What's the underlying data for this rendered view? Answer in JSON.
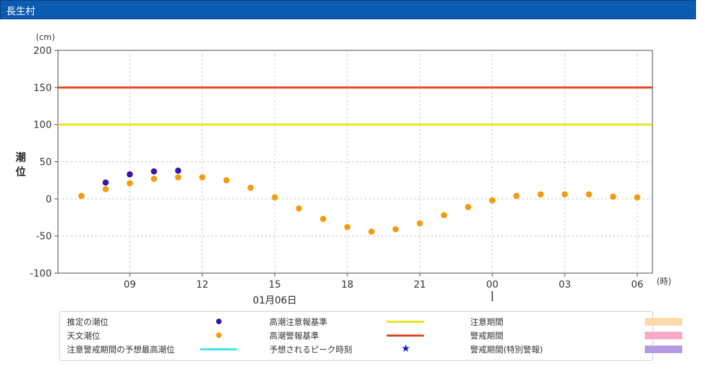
{
  "header": {
    "title": "長生村"
  },
  "chart_data": {
    "type": "scatter",
    "yunit": "(cm)",
    "ylabel": "潮位",
    "xunit": "(時)",
    "date_label": "01月06日",
    "ylim": [
      -100,
      200
    ],
    "yticks": [
      200,
      150,
      100,
      50,
      0,
      -50,
      -100
    ],
    "xticks": [
      "09",
      "12",
      "15",
      "18",
      "21",
      "00",
      "03",
      "06"
    ],
    "grid": true,
    "reference_lines": [
      {
        "name": "高潮警報基準",
        "value": 150,
        "color": "#e0441e"
      },
      {
        "name": "高潮注意報基準",
        "value": 100,
        "color": "#e6e61e"
      }
    ],
    "series": [
      {
        "name": "天文潮位",
        "color": "#f59a0c",
        "points": [
          [
            "07:00",
            4
          ],
          [
            "08:00",
            13
          ],
          [
            "09:00",
            21
          ],
          [
            "10:00",
            27
          ],
          [
            "11:00",
            29
          ],
          [
            "12:00",
            29
          ],
          [
            "13:00",
            25
          ],
          [
            "14:00",
            15
          ],
          [
            "15:00",
            2
          ],
          [
            "16:00",
            -13
          ],
          [
            "17:00",
            -27
          ],
          [
            "18:00",
            -38
          ],
          [
            "19:00",
            -44
          ],
          [
            "20:00",
            -41
          ],
          [
            "21:00",
            -33
          ],
          [
            "22:00",
            -22
          ],
          [
            "23:00",
            -11
          ],
          [
            "00:00",
            -2
          ],
          [
            "01:00",
            4
          ],
          [
            "02:00",
            6
          ],
          [
            "03:00",
            6
          ],
          [
            "04:00",
            6
          ],
          [
            "05:00",
            3
          ],
          [
            "06:00",
            2
          ]
        ]
      },
      {
        "name": "推定の潮位",
        "color": "#3a14b0",
        "points": [
          [
            "08:00",
            22
          ],
          [
            "09:00",
            33
          ],
          [
            "10:00",
            37
          ],
          [
            "11:00",
            38
          ]
        ]
      }
    ]
  },
  "legend": {
    "items": [
      {
        "label": "推定の潮位",
        "type": "dot",
        "color": "#3a14b0"
      },
      {
        "label": "高潮注意報基準",
        "type": "line",
        "color": "#e6e61e"
      },
      {
        "label": "注意期間",
        "type": "box",
        "color": "#fbd9a8"
      },
      {
        "label": "天文潮位",
        "type": "dot",
        "color": "#f59a0c"
      },
      {
        "label": "高潮警報基準",
        "type": "line",
        "color": "#e0441e"
      },
      {
        "label": "警戒期間",
        "type": "box",
        "color": "#f7abc8"
      },
      {
        "label": "注意警戒期間の予想最高潮位",
        "type": "line",
        "color": "#3ee6e8"
      },
      {
        "label": "予想されるピーク時刻",
        "type": "star",
        "color": "#1020c8"
      },
      {
        "label": "警戒期間(特別警報)",
        "type": "box",
        "color": "#b59ae3"
      }
    ]
  }
}
